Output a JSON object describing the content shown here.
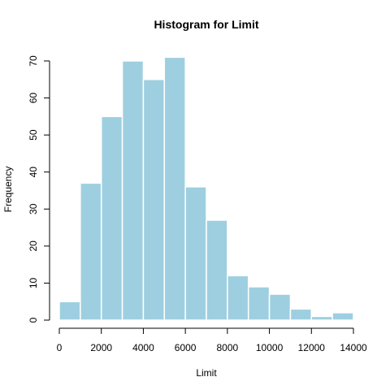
{
  "chart_data": {
    "type": "bar",
    "title": "Histogram for  Limit",
    "xlabel": "Limit",
    "ylabel": "Frequency",
    "bins": [
      {
        "start": 0,
        "end": 1000,
        "count": 5
      },
      {
        "start": 1000,
        "end": 2000,
        "count": 37
      },
      {
        "start": 2000,
        "end": 3000,
        "count": 55
      },
      {
        "start": 3000,
        "end": 4000,
        "count": 70
      },
      {
        "start": 4000,
        "end": 5000,
        "count": 65
      },
      {
        "start": 5000,
        "end": 6000,
        "count": 71
      },
      {
        "start": 6000,
        "end": 7000,
        "count": 36
      },
      {
        "start": 7000,
        "end": 8000,
        "count": 27
      },
      {
        "start": 8000,
        "end": 9000,
        "count": 12
      },
      {
        "start": 9000,
        "end": 10000,
        "count": 9
      },
      {
        "start": 10000,
        "end": 11000,
        "count": 7
      },
      {
        "start": 11000,
        "end": 12000,
        "count": 3
      },
      {
        "start": 12000,
        "end": 13000,
        "count": 1
      },
      {
        "start": 13000,
        "end": 14000,
        "count": 2
      }
    ],
    "xlim": [
      0,
      14000
    ],
    "ylim": [
      0,
      71
    ],
    "x_ticks": [
      0,
      2000,
      4000,
      6000,
      8000,
      10000,
      12000,
      14000
    ],
    "y_ticks": [
      0,
      10,
      20,
      30,
      40,
      50,
      60,
      70
    ],
    "grid": false,
    "colors": {
      "bar_fill": "#9ecfe0",
      "bar_border": "#ffffff",
      "axis": "#000000"
    }
  }
}
